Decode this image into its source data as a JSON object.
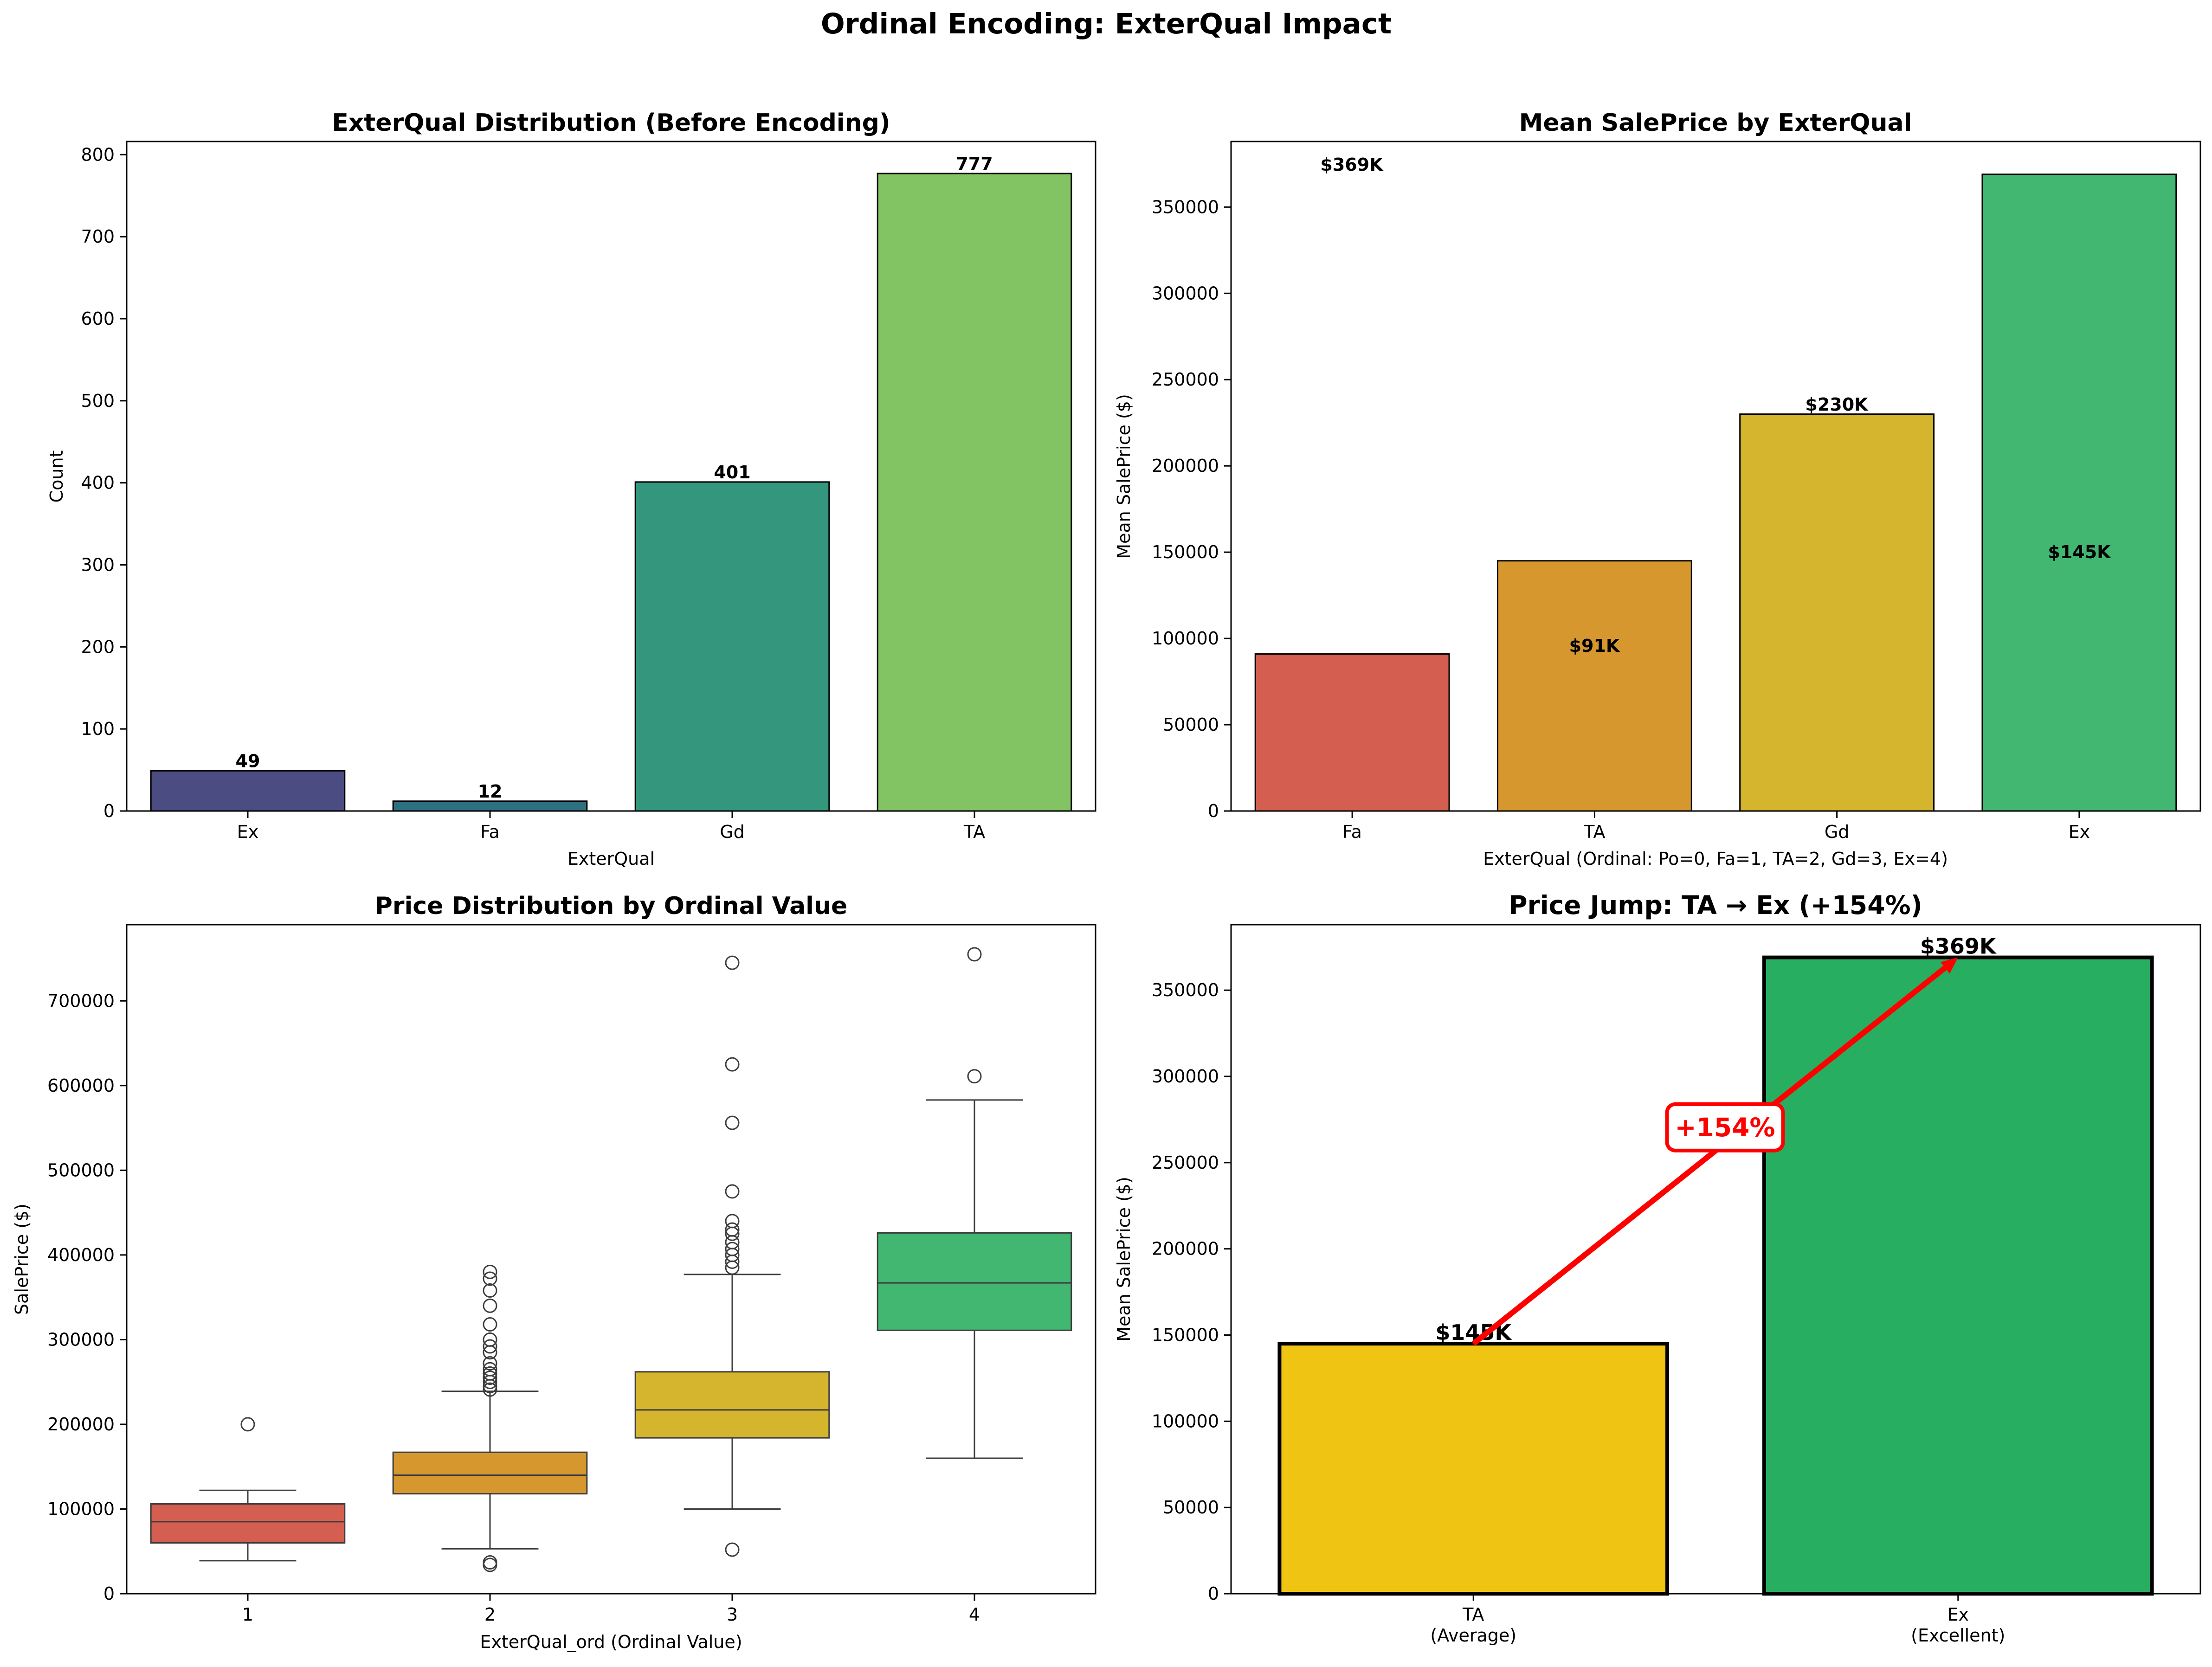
{
  "figure_title": "Ordinal Encoding: ExterQual Impact",
  "panels": {
    "distribution": {
      "title": "ExterQual Distribution (Before Encoding)",
      "xlabel": "ExterQual",
      "ylabel": "Count",
      "bar_labels": [
        "49",
        "12",
        "401",
        "777"
      ]
    },
    "mean_price": {
      "title": "Mean SalePrice by ExterQual",
      "xlabel": "ExterQual (Ordinal: Po=0, Fa=1, TA=2, Gd=3, Ex=4)",
      "ylabel": "Mean SalePrice ($)",
      "annotations": [
        "$369K",
        "$91K",
        "$230K",
        "$145K"
      ]
    },
    "boxplot": {
      "title": "Price Distribution by Ordinal Value",
      "xlabel": "ExterQual_ord (Ordinal Value)",
      "ylabel": "SalePrice ($)"
    },
    "price_jump": {
      "title": "Price Jump: TA → Ex (+154%)",
      "ylabel": "Mean SalePrice ($)",
      "category_sublabels": [
        "(Average)",
        "(Excellent)"
      ],
      "bar_labels": [
        "$145K",
        "$369K"
      ],
      "arrow_label": "+154%"
    }
  },
  "colors": {
    "viridis": [
      "#4a4c82",
      "#2d7082",
      "#34977d",
      "#82c363"
    ],
    "fa": "#d45f51",
    "ta": "#d6972f",
    "gd": "#d5b42e",
    "ex": "#41b772",
    "jump_ta": "#f0c413",
    "jump_ex": "#27ae60",
    "arrow": "#ff0000"
  },
  "chart_data": [
    {
      "type": "bar",
      "title": "ExterQual Distribution (Before Encoding)",
      "xlabel": "ExterQual",
      "ylabel": "Count",
      "categories": [
        "Ex",
        "Fa",
        "Gd",
        "TA"
      ],
      "values": [
        49,
        12,
        401,
        777
      ],
      "ylim": [
        0,
        816
      ],
      "yticks": [
        0,
        100,
        200,
        300,
        400,
        500,
        600,
        700,
        800
      ],
      "grid": false
    },
    {
      "type": "bar",
      "title": "Mean SalePrice by ExterQual",
      "xlabel": "ExterQual (Ordinal: Po=0, Fa=1, TA=2, Gd=3, Ex=4)",
      "ylabel": "Mean SalePrice ($)",
      "categories": [
        "Fa",
        "TA",
        "Gd",
        "Ex"
      ],
      "values": [
        91000,
        145000,
        230000,
        369000
      ],
      "ylim": [
        0,
        388000
      ],
      "yticks": [
        0,
        50000,
        100000,
        150000,
        200000,
        250000,
        300000,
        350000
      ],
      "grid": false
    },
    {
      "type": "box",
      "title": "Price Distribution by Ordinal Value",
      "xlabel": "ExterQual_ord (Ordinal Value)",
      "ylabel": "SalePrice ($)",
      "categories": [
        "1",
        "2",
        "3",
        "4"
      ],
      "boxes": [
        {
          "whisker_low": 39000,
          "q1": 60000,
          "median": 85000,
          "q3": 106000,
          "whisker_high": 122000,
          "outliers": [
            200000
          ]
        },
        {
          "whisker_low": 53000,
          "q1": 118000,
          "median": 140000,
          "q3": 167000,
          "whisker_high": 239000,
          "outliers": [
            34000,
            37000,
            241000,
            245000,
            250000,
            255000,
            260000,
            265000,
            272000,
            285000,
            292000,
            300000,
            318000,
            340000,
            358000,
            372000,
            380000
          ]
        },
        {
          "whisker_low": 100000,
          "q1": 184000,
          "median": 217000,
          "q3": 262000,
          "whisker_high": 377000,
          "outliers": [
            52000,
            385000,
            392000,
            400000,
            407000,
            415000,
            425000,
            430000,
            440000,
            475000,
            556000,
            625000,
            745000
          ]
        },
        {
          "whisker_low": 160000,
          "q1": 311000,
          "median": 367000,
          "q3": 426000,
          "whisker_high": 583000,
          "outliers": [
            611000,
            755000
          ]
        }
      ],
      "ylim": [
        0,
        790000
      ],
      "yticks": [
        0,
        100000,
        200000,
        300000,
        400000,
        500000,
        600000,
        700000
      ],
      "grid": false
    },
    {
      "type": "bar",
      "title": "Price Jump: TA → Ex (+154%)",
      "ylabel": "Mean SalePrice ($)",
      "categories": [
        "TA",
        "Ex"
      ],
      "values": [
        145000,
        369000
      ],
      "annotation": "+154%",
      "ylim": [
        0,
        388000
      ],
      "yticks": [
        0,
        50000,
        100000,
        150000,
        200000,
        250000,
        300000,
        350000
      ],
      "grid": false
    }
  ]
}
